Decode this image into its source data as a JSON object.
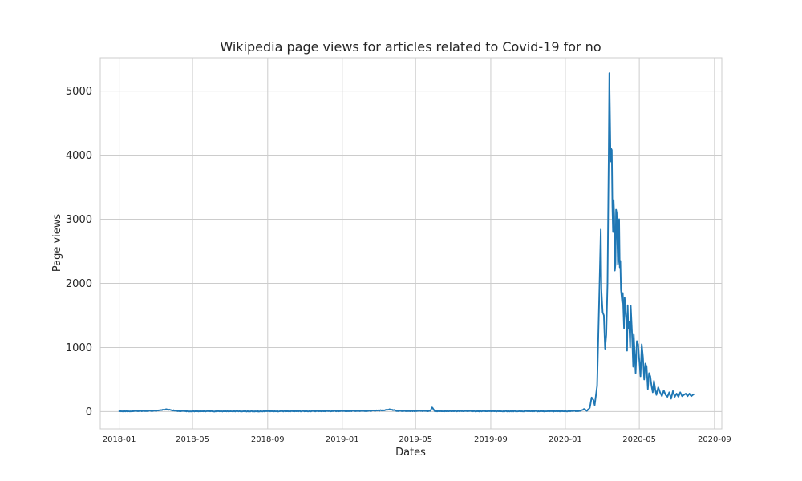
{
  "chart_data": {
    "type": "line",
    "title": "Wikipedia page views for articles related to Covid-19 for no",
    "xlabel": "Dates",
    "ylabel": "Page views",
    "x_ticks": [
      "2018-01",
      "2018-05",
      "2018-09",
      "2019-01",
      "2019-05",
      "2019-09",
      "2020-01",
      "2020-05",
      "2020-09"
    ],
    "y_ticks": [
      "0",
      "1000",
      "2000",
      "3000",
      "4000",
      "5000"
    ],
    "xlim": [
      "2017-12-01",
      "2020-09-13"
    ],
    "ylim": [
      -270,
      5520
    ],
    "grid": true,
    "legend": "none",
    "series": [
      {
        "color": "#1f77b4",
        "points": [
          [
            "2018-01-01",
            5
          ],
          [
            "2018-02-01",
            8
          ],
          [
            "2018-03-01",
            12
          ],
          [
            "2018-03-20",
            35
          ],
          [
            "2018-04-05",
            10
          ],
          [
            "2018-05-01",
            5
          ],
          [
            "2018-07-01",
            4
          ],
          [
            "2018-09-01",
            5
          ],
          [
            "2018-11-01",
            6
          ],
          [
            "2019-01-01",
            8
          ],
          [
            "2019-02-15",
            12
          ],
          [
            "2019-03-10",
            20
          ],
          [
            "2019-03-20",
            35
          ],
          [
            "2019-04-01",
            10
          ],
          [
            "2019-05-01",
            8
          ],
          [
            "2019-05-25",
            10
          ],
          [
            "2019-05-28",
            65
          ],
          [
            "2019-06-01",
            8
          ],
          [
            "2019-09-01",
            5
          ],
          [
            "2019-11-01",
            6
          ],
          [
            "2020-01-01",
            5
          ],
          [
            "2020-01-25",
            10
          ],
          [
            "2020-02-01",
            40
          ],
          [
            "2020-02-05",
            10
          ],
          [
            "2020-02-10",
            60
          ],
          [
            "2020-02-13",
            220
          ],
          [
            "2020-02-16",
            180
          ],
          [
            "2020-02-18",
            100
          ],
          [
            "2020-02-22",
            400
          ],
          [
            "2020-02-26",
            2000
          ],
          [
            "2020-02-28",
            2840
          ],
          [
            "2020-02-29",
            1900
          ],
          [
            "2020-03-02",
            1550
          ],
          [
            "2020-03-04",
            1500
          ],
          [
            "2020-03-06",
            980
          ],
          [
            "2020-03-08",
            1200
          ],
          [
            "2020-03-10",
            2000
          ],
          [
            "2020-03-12",
            4000
          ],
          [
            "2020-03-13",
            5280
          ],
          [
            "2020-03-14",
            4600
          ],
          [
            "2020-03-15",
            3900
          ],
          [
            "2020-03-16",
            4100
          ],
          [
            "2020-03-17",
            4080
          ],
          [
            "2020-03-18",
            3200
          ],
          [
            "2020-03-19",
            2800
          ],
          [
            "2020-03-20",
            3300
          ],
          [
            "2020-03-21",
            3050
          ],
          [
            "2020-03-22",
            2200
          ],
          [
            "2020-03-23",
            2300
          ],
          [
            "2020-03-24",
            3150
          ],
          [
            "2020-03-25",
            3100
          ],
          [
            "2020-03-27",
            2300
          ],
          [
            "2020-03-28",
            2400
          ],
          [
            "2020-03-29",
            3000
          ],
          [
            "2020-03-30",
            2250
          ],
          [
            "2020-03-31",
            2350
          ],
          [
            "2020-04-01",
            1900
          ],
          [
            "2020-04-03",
            1700
          ],
          [
            "2020-04-04",
            1850
          ],
          [
            "2020-04-06",
            1300
          ],
          [
            "2020-04-07",
            1780
          ],
          [
            "2020-04-08",
            1650
          ],
          [
            "2020-04-10",
            1400
          ],
          [
            "2020-04-11",
            950
          ],
          [
            "2020-04-12",
            1660
          ],
          [
            "2020-04-13",
            1300
          ],
          [
            "2020-04-14",
            1400
          ],
          [
            "2020-04-15",
            1250
          ],
          [
            "2020-04-16",
            1000
          ],
          [
            "2020-04-17",
            1650
          ],
          [
            "2020-04-19",
            1250
          ],
          [
            "2020-04-21",
            700
          ],
          [
            "2020-04-22",
            1200
          ],
          [
            "2020-04-23",
            1000
          ],
          [
            "2020-04-25",
            600
          ],
          [
            "2020-04-27",
            1100
          ],
          [
            "2020-04-29",
            1050
          ],
          [
            "2020-05-01",
            800
          ],
          [
            "2020-05-03",
            550
          ],
          [
            "2020-05-05",
            1050
          ],
          [
            "2020-05-07",
            850
          ],
          [
            "2020-05-09",
            500
          ],
          [
            "2020-05-11",
            750
          ],
          [
            "2020-05-13",
            700
          ],
          [
            "2020-05-15",
            350
          ],
          [
            "2020-05-17",
            600
          ],
          [
            "2020-05-19",
            550
          ],
          [
            "2020-05-21",
            400
          ],
          [
            "2020-05-23",
            300
          ],
          [
            "2020-05-25",
            480
          ],
          [
            "2020-05-27",
            350
          ],
          [
            "2020-05-29",
            260
          ],
          [
            "2020-06-01",
            380
          ],
          [
            "2020-06-04",
            300
          ],
          [
            "2020-06-07",
            240
          ],
          [
            "2020-06-10",
            330
          ],
          [
            "2020-06-13",
            260
          ],
          [
            "2020-06-16",
            230
          ],
          [
            "2020-06-19",
            300
          ],
          [
            "2020-06-22",
            200
          ],
          [
            "2020-06-25",
            320
          ],
          [
            "2020-06-28",
            230
          ],
          [
            "2020-07-01",
            280
          ],
          [
            "2020-07-04",
            230
          ],
          [
            "2020-07-07",
            300
          ],
          [
            "2020-07-10",
            240
          ],
          [
            "2020-07-13",
            260
          ],
          [
            "2020-07-16",
            280
          ],
          [
            "2020-07-19",
            240
          ],
          [
            "2020-07-22",
            280
          ],
          [
            "2020-07-25",
            240
          ],
          [
            "2020-07-29",
            270
          ]
        ]
      }
    ]
  }
}
